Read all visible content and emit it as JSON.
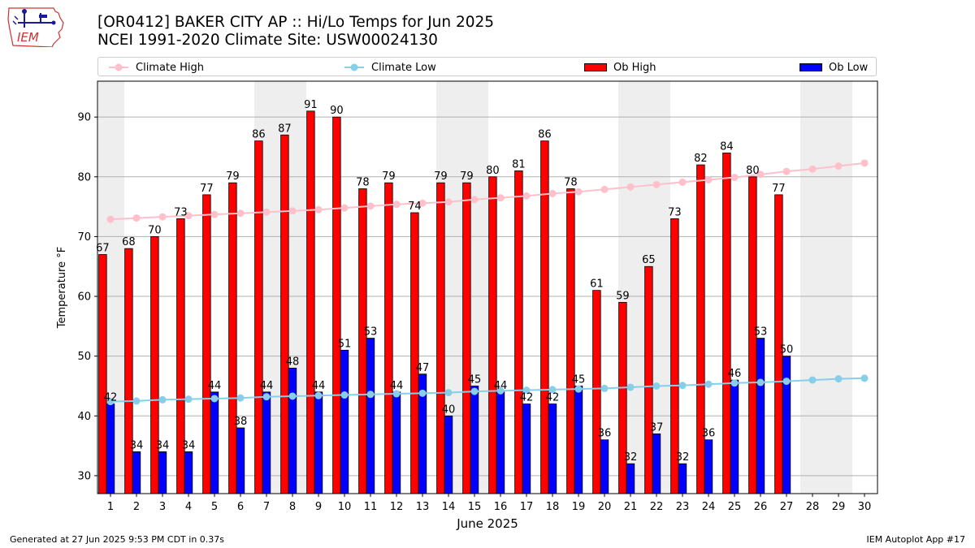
{
  "header": {
    "title_line1": "[OR0412] BAKER CITY AP :: Hi/Lo Temps for Jun 2025",
    "title_line2": "NCEI 1991-2020 Climate Site: USW00024130",
    "logo_text": "IEM"
  },
  "footer": {
    "generated": "Generated at 27 Jun 2025 9:53 PM CDT in 0.37s",
    "app": "IEM Autoplot App #17"
  },
  "legend": {
    "placement": "top, above plot",
    "items": [
      {
        "label": "Climate High",
        "kind": "line",
        "color": "#ffc0cb"
      },
      {
        "label": "Climate Low",
        "kind": "line",
        "color": "#87ceeb"
      },
      {
        "label": "Ob High",
        "kind": "bar",
        "color": "#ff0000"
      },
      {
        "label": "Ob Low",
        "kind": "bar",
        "color": "#0000ff"
      }
    ]
  },
  "chart_data": {
    "type": "bar",
    "xlabel": "June 2025",
    "ylabel": "Temperature °F",
    "ylim": [
      27,
      96
    ],
    "yticks": [
      30,
      40,
      50,
      60,
      70,
      80,
      90
    ],
    "grid": "horizontal",
    "categories": [
      "1",
      "2",
      "3",
      "4",
      "5",
      "6",
      "7",
      "8",
      "9",
      "10",
      "11",
      "12",
      "13",
      "14",
      "15",
      "16",
      "17",
      "18",
      "19",
      "20",
      "21",
      "22",
      "23",
      "24",
      "25",
      "26",
      "27",
      "28",
      "29",
      "30"
    ],
    "weekend_shaded_days": [
      1,
      7,
      8,
      14,
      15,
      21,
      22,
      28,
      29
    ],
    "series": [
      {
        "name": "Ob High",
        "kind": "bar",
        "color": "#ff0000",
        "values": [
          67,
          68,
          70,
          73,
          77,
          79,
          86,
          87,
          91,
          90,
          78,
          79,
          74,
          79,
          79,
          80,
          81,
          86,
          78,
          61,
          59,
          65,
          73,
          82,
          84,
          80,
          77,
          null,
          null,
          null
        ]
      },
      {
        "name": "Ob Low",
        "kind": "bar",
        "color": "#0000ff",
        "values": [
          42,
          34,
          34,
          34,
          44,
          38,
          44,
          48,
          44,
          51,
          53,
          44,
          47,
          40,
          45,
          44,
          42,
          42,
          45,
          36,
          32,
          37,
          32,
          36,
          46,
          53,
          50,
          null,
          null,
          null
        ]
      },
      {
        "name": "Climate High",
        "kind": "line",
        "color": "#ffc0cb",
        "values": [
          72.9,
          73.1,
          73.3,
          73.5,
          73.7,
          73.9,
          74.1,
          74.3,
          74.5,
          74.8,
          75.1,
          75.4,
          75.6,
          75.8,
          76.2,
          76.5,
          76.8,
          77.2,
          77.5,
          77.9,
          78.3,
          78.7,
          79.1,
          79.5,
          79.9,
          80.4,
          80.9,
          81.3,
          81.8,
          82.3
        ]
      },
      {
        "name": "Climate Low",
        "kind": "line",
        "color": "#87ceeb",
        "values": [
          42.4,
          42.5,
          42.7,
          42.8,
          42.9,
          43.0,
          43.2,
          43.3,
          43.4,
          43.5,
          43.6,
          43.7,
          43.8,
          43.9,
          44.1,
          44.2,
          44.3,
          44.4,
          44.5,
          44.6,
          44.8,
          45.0,
          45.1,
          45.3,
          45.5,
          45.6,
          45.8,
          46.0,
          46.2,
          46.3
        ]
      }
    ]
  }
}
